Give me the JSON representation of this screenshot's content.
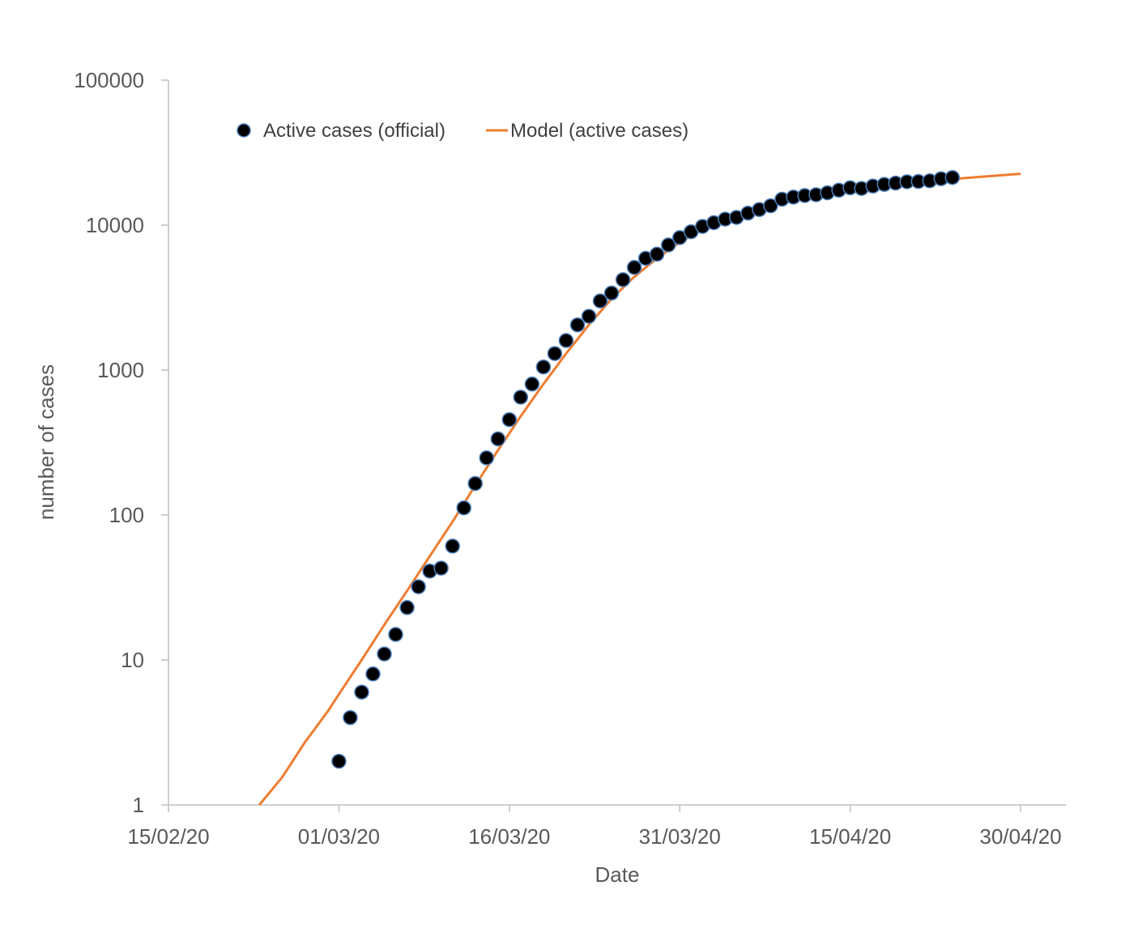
{
  "chart_data": {
    "type": "scatter",
    "title": "",
    "xlabel": "Date",
    "ylabel": "number of cases",
    "x_scale": "date",
    "y_scale": "log",
    "xlim": [
      "2020-02-15",
      "2020-04-30"
    ],
    "ylim": [
      1,
      100000
    ],
    "x_ticks": [
      "2020-02-15",
      "2020-03-01",
      "2020-03-16",
      "2020-03-31",
      "2020-04-15",
      "2020-04-30"
    ],
    "x_tick_labels": [
      "15/02/20",
      "01/03/20",
      "16/03/20",
      "31/03/20",
      "15/04/20",
      "30/04/20"
    ],
    "y_ticks": [
      1,
      10,
      100,
      1000,
      10000,
      100000
    ],
    "y_tick_labels": [
      "1",
      "10",
      "100",
      "1000",
      "10000",
      "100000"
    ],
    "grid": false,
    "legend_position": "top-left",
    "series": [
      {
        "name": "Active cases (official)",
        "kind": "scatter",
        "color": "#000000",
        "edge_color": "#4a7ebb",
        "points": [
          [
            "2020-03-01",
            2
          ],
          [
            "2020-03-02",
            4
          ],
          [
            "2020-03-03",
            6
          ],
          [
            "2020-03-04",
            8
          ],
          [
            "2020-03-05",
            11
          ],
          [
            "2020-03-06",
            15
          ],
          [
            "2020-03-07",
            23
          ],
          [
            "2020-03-08",
            32
          ],
          [
            "2020-03-09",
            41
          ],
          [
            "2020-03-10",
            43
          ],
          [
            "2020-03-11",
            61
          ],
          [
            "2020-03-12",
            112
          ],
          [
            "2020-03-13",
            165
          ],
          [
            "2020-03-14",
            248
          ],
          [
            "2020-03-15",
            335
          ],
          [
            "2020-03-16",
            455
          ],
          [
            "2020-03-17",
            650
          ],
          [
            "2020-03-18",
            800
          ],
          [
            "2020-03-19",
            1050
          ],
          [
            "2020-03-20",
            1300
          ],
          [
            "2020-03-21",
            1600
          ],
          [
            "2020-03-22",
            2050
          ],
          [
            "2020-03-23",
            2350
          ],
          [
            "2020-03-24",
            3000
          ],
          [
            "2020-03-25",
            3400
          ],
          [
            "2020-03-26",
            4200
          ],
          [
            "2020-03-27",
            5100
          ],
          [
            "2020-03-28",
            5900
          ],
          [
            "2020-03-29",
            6300
          ],
          [
            "2020-03-30",
            7300
          ],
          [
            "2020-03-31",
            8200
          ],
          [
            "2020-04-01",
            9000
          ],
          [
            "2020-04-02",
            9800
          ],
          [
            "2020-04-03",
            10400
          ],
          [
            "2020-04-04",
            11000
          ],
          [
            "2020-04-05",
            11300
          ],
          [
            "2020-04-06",
            12100
          ],
          [
            "2020-04-07",
            12800
          ],
          [
            "2020-04-08",
            13600
          ],
          [
            "2020-04-09",
            15100
          ],
          [
            "2020-04-10",
            15600
          ],
          [
            "2020-04-11",
            16000
          ],
          [
            "2020-04-12",
            16200
          ],
          [
            "2020-04-13",
            16700
          ],
          [
            "2020-04-14",
            17400
          ],
          [
            "2020-04-15",
            18100
          ],
          [
            "2020-04-16",
            17900
          ],
          [
            "2020-04-17",
            18600
          ],
          [
            "2020-04-18",
            19100
          ],
          [
            "2020-04-19",
            19500
          ],
          [
            "2020-04-20",
            19900
          ],
          [
            "2020-04-21",
            20000
          ],
          [
            "2020-04-22",
            20200
          ],
          [
            "2020-04-23",
            20900
          ],
          [
            "2020-04-24",
            21300
          ]
        ]
      },
      {
        "name": "Model (active cases)",
        "kind": "line",
        "color": "#ed7d31",
        "points": [
          [
            "2020-02-23",
            1.0
          ],
          [
            "2020-02-25",
            1.55
          ],
          [
            "2020-02-27",
            2.7
          ],
          [
            "2020-02-29",
            4.4
          ],
          [
            "2020-03-01",
            5.8
          ],
          [
            "2020-03-03",
            10
          ],
          [
            "2020-03-05",
            17.5
          ],
          [
            "2020-03-07",
            30
          ],
          [
            "2020-03-09",
            52
          ],
          [
            "2020-03-11",
            90
          ],
          [
            "2020-03-13",
            160
          ],
          [
            "2020-03-15",
            280
          ],
          [
            "2020-03-17",
            480
          ],
          [
            "2020-03-19",
            800
          ],
          [
            "2020-03-21",
            1300
          ],
          [
            "2020-03-23",
            2050
          ],
          [
            "2020-03-25",
            3100
          ],
          [
            "2020-03-27",
            4400
          ],
          [
            "2020-03-29",
            5900
          ],
          [
            "2020-03-31",
            7600
          ],
          [
            "2020-04-02",
            9300
          ],
          [
            "2020-04-04",
            10900
          ],
          [
            "2020-04-06",
            12400
          ],
          [
            "2020-04-08",
            13800
          ],
          [
            "2020-04-10",
            15100
          ],
          [
            "2020-04-12",
            16200
          ],
          [
            "2020-04-14",
            17200
          ],
          [
            "2020-04-16",
            18000
          ],
          [
            "2020-04-18",
            18800
          ],
          [
            "2020-04-20",
            19500
          ],
          [
            "2020-04-22",
            20200
          ],
          [
            "2020-04-24",
            20800
          ],
          [
            "2020-04-26",
            21400
          ],
          [
            "2020-04-28",
            22000
          ],
          [
            "2020-04-30",
            22600
          ]
        ]
      }
    ]
  }
}
